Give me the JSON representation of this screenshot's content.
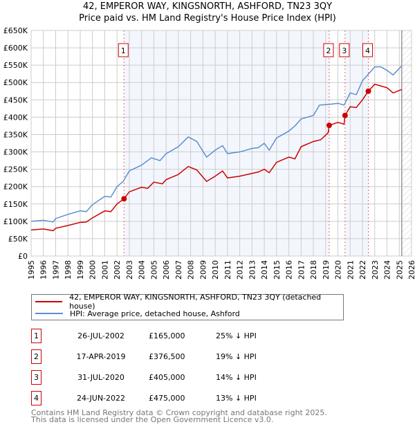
{
  "title": "42, EMPEROR WAY, KINGSNORTH, ASHFORD, TN23 3QY",
  "subtitle": "Price paid vs. HM Land Registry's House Price Index (HPI)",
  "chart_data": {
    "type": "line",
    "xlim": [
      1995,
      2026
    ],
    "ylim": [
      0,
      650
    ],
    "x_ticks": [
      "1995",
      "1996",
      "1997",
      "1998",
      "1999",
      "2000",
      "2001",
      "2002",
      "2003",
      "2004",
      "2005",
      "2006",
      "2007",
      "2008",
      "2009",
      "2010",
      "2011",
      "2012",
      "2013",
      "2014",
      "2015",
      "2016",
      "2017",
      "2018",
      "2019",
      "2020",
      "2021",
      "2022",
      "2023",
      "2024",
      "2025",
      "2026"
    ],
    "y_ticks": [
      "£0",
      "£50K",
      "£100K",
      "£150K",
      "£200K",
      "£250K",
      "£300K",
      "£350K",
      "£400K",
      "£450K",
      "£500K",
      "£550K",
      "£600K",
      "£650K"
    ],
    "grid": true,
    "data_end": 2025.2,
    "series": [
      {
        "name": "42, EMPEROR WAY, KINGSNORTH, ASHFORD, TN23 3QY (detached house)",
        "color": "#cc0000",
        "x": [
          1995,
          1996,
          1996.8,
          1997,
          1998,
          1999,
          1999.5,
          2000,
          2001,
          2001.5,
          2002,
          2002.57,
          2003,
          2004,
          2004.5,
          2005,
          2005.7,
          2006,
          2007,
          2007.8,
          2008.5,
          2009.3,
          2010,
          2010.6,
          2011,
          2012,
          2013,
          2013.5,
          2014,
          2014.4,
          2015,
          2016,
          2016.5,
          2017,
          2018,
          2018.6,
          2019.2,
          2019.29,
          2020,
          2020.5,
          2020.58,
          2021,
          2021.5,
          2022,
          2022.48,
          2023,
          2023.5,
          2024,
          2024.5,
          2025.2
        ],
        "values": [
          75,
          78,
          73,
          80,
          88,
          97,
          98,
          110,
          130,
          128,
          150,
          165,
          185,
          198,
          195,
          213,
          208,
          220,
          235,
          258,
          248,
          215,
          230,
          245,
          225,
          230,
          238,
          242,
          250,
          240,
          270,
          285,
          280,
          315,
          330,
          335,
          355,
          376.5,
          385,
          380,
          405,
          430,
          428,
          450,
          475,
          495,
          490,
          485,
          470,
          480
        ]
      },
      {
        "name": "HPI: Average price, detached house, Ashford",
        "color": "#5b8fd0",
        "x": [
          1995,
          1996,
          1996.8,
          1997,
          1998,
          1999,
          1999.5,
          2000,
          2001,
          2001.5,
          2002,
          2002.5,
          2003,
          2004,
          2004.8,
          2005.5,
          2006,
          2007,
          2007.8,
          2008.5,
          2009.3,
          2010,
          2010.6,
          2011,
          2012,
          2013,
          2013.5,
          2014,
          2014.4,
          2015,
          2016,
          2016.5,
          2017,
          2018,
          2018.5,
          2019.3,
          2020,
          2020.5,
          2021,
          2021.5,
          2022,
          2022.5,
          2023,
          2023.5,
          2024,
          2024.5,
          2025.2
        ],
        "values": [
          100,
          103,
          98,
          108,
          120,
          130,
          128,
          148,
          172,
          170,
          200,
          215,
          245,
          262,
          283,
          275,
          295,
          315,
          343,
          330,
          285,
          305,
          318,
          295,
          300,
          310,
          312,
          325,
          305,
          340,
          360,
          375,
          395,
          405,
          435,
          437,
          440,
          435,
          470,
          465,
          505,
          525,
          545,
          545,
          535,
          522,
          548
        ]
      }
    ],
    "sales": [
      {
        "label": "1",
        "x": 2002.57,
        "value": 165
      },
      {
        "label": "2",
        "x": 2019.29,
        "value": 376.5
      },
      {
        "label": "3",
        "x": 2020.58,
        "value": 405
      },
      {
        "label": "4",
        "x": 2022.48,
        "value": 475
      }
    ]
  },
  "legend": {
    "property": "42, EMPEROR WAY, KINGSNORTH, ASHFORD, TN23 3QY (detached house)",
    "hpi": "HPI: Average price, detached house, Ashford"
  },
  "table": [
    {
      "num": "1",
      "date": "26-JUL-2002",
      "price": "£165,000",
      "hpi": "25% ↓ HPI"
    },
    {
      "num": "2",
      "date": "17-APR-2019",
      "price": "£376,500",
      "hpi": "19% ↓ HPI"
    },
    {
      "num": "3",
      "date": "31-JUL-2020",
      "price": "£405,000",
      "hpi": "14% ↓ HPI"
    },
    {
      "num": "4",
      "date": "24-JUN-2022",
      "price": "£475,000",
      "hpi": "13% ↓ HPI"
    }
  ],
  "footer": {
    "line1": "Contains HM Land Registry data © Crown copyright and database right 2025.",
    "line2": "This data is licensed under the Open Government Licence v3.0."
  }
}
